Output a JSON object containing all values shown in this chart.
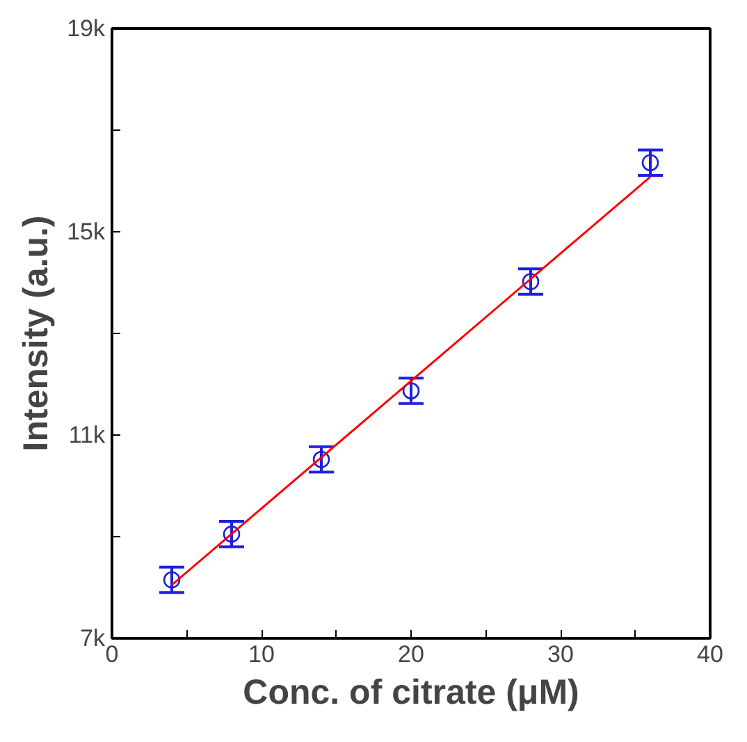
{
  "chart_data": {
    "type": "scatter",
    "xlabel": "Conc. of citrate (μM)",
    "ylabel": "Intensity (a.u.)",
    "xlim": [
      0,
      40
    ],
    "ylim": [
      7000,
      19000
    ],
    "xticks": [
      0,
      {
        "value": 5,
        "label": null
      },
      10,
      {
        "value": 15,
        "label": null
      },
      20,
      {
        "value": 25,
        "label": null
      },
      30,
      {
        "value": 35,
        "label": null
      },
      40
    ],
    "yticks": [
      {
        "value": 7000,
        "label": "7k"
      },
      {
        "value": 9000,
        "label": null
      },
      {
        "value": 11000,
        "label": "11k"
      },
      {
        "value": 13000,
        "label": null
      },
      {
        "value": 15000,
        "label": "15k"
      },
      {
        "value": 17000,
        "label": null
      },
      {
        "value": 19000,
        "label": "19k"
      }
    ],
    "grid": false,
    "series": [
      {
        "color": "#1f1fdf",
        "marker": "circle",
        "x": [
          4,
          8,
          14,
          20,
          28,
          36
        ],
        "values": [
          8150,
          9050,
          10520,
          11870,
          14020,
          16360
        ],
        "errors": [
          250,
          250,
          250,
          250,
          250,
          250
        ]
      },
      {
        "type": "line",
        "color": "#ff0000",
        "marker": "none",
        "line_style": "solid",
        "x": [
          4,
          36
        ],
        "values": [
          8050,
          16080
        ]
      }
    ]
  }
}
